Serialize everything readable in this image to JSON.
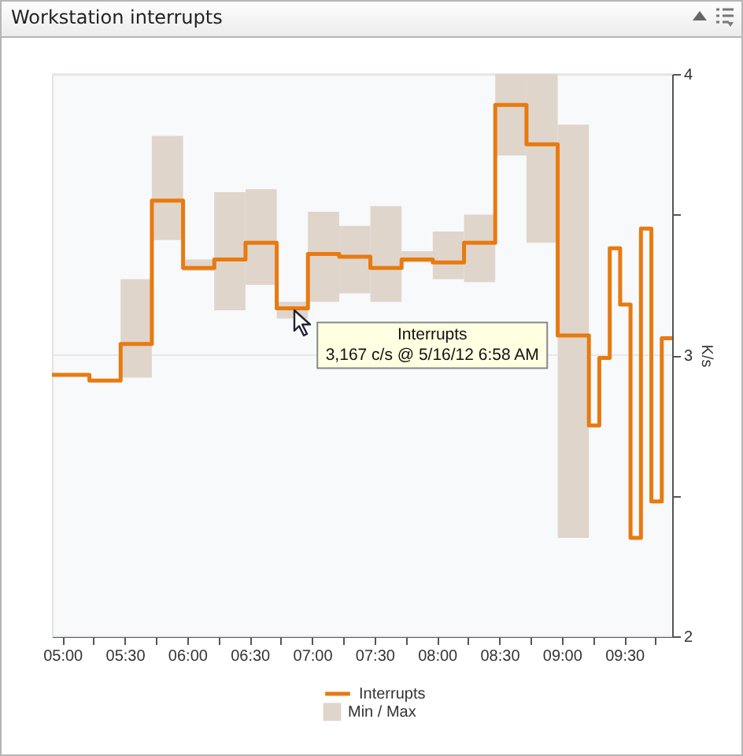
{
  "chart_data": {
    "type": "step",
    "title": "Workstation interrupts",
    "ylabel": "K/s",
    "xlim": [
      "--05-16T04:55",
      "--05-16T09:53"
    ],
    "ylim": [
      2,
      4
    ],
    "xticks": [
      {
        "value": "--05-16T05:00",
        "label": "05:00"
      },
      {
        "value": "--05-16T05:15",
        "label": null
      },
      {
        "value": "--05-16T05:30",
        "label": "05:30"
      },
      {
        "value": "--05-16T05:45",
        "label": null
      },
      {
        "value": "--05-16T06:00",
        "label": "06:00"
      },
      {
        "value": "--05-16T06:15",
        "label": null
      },
      {
        "value": "--05-16T06:30",
        "label": "06:30"
      },
      {
        "value": "--05-16T06:45",
        "label": null
      },
      {
        "value": "--05-16T07:00",
        "label": "07:00"
      },
      {
        "value": "--05-16T07:15",
        "label": null
      },
      {
        "value": "--05-16T07:30",
        "label": "07:30"
      },
      {
        "value": "--05-16T07:45",
        "label": null
      },
      {
        "value": "--05-16T08:00",
        "label": "08:00"
      },
      {
        "value": "--05-16T08:15",
        "label": null
      },
      {
        "value": "--05-16T08:30",
        "label": "08:30"
      },
      {
        "value": "--05-16T08:45",
        "label": null
      },
      {
        "value": "--05-16T09:00",
        "label": "09:00"
      },
      {
        "value": "--05-16T09:15",
        "label": null
      },
      {
        "value": "--05-16T09:30",
        "label": "09:30"
      },
      {
        "value": "--05-16T09:45",
        "label": null
      }
    ],
    "yticks": [
      2,
      {
        "value": 2.5,
        "label": null
      },
      3,
      {
        "value": 3.5,
        "label": null
      },
      4
    ],
    "grid": "y",
    "legend": "bottom",
    "annotations": [
      "Interrupts",
      {
        "text": "3,167 c/s @ 5/16/12 6:58 AM",
        "x": "--05-16T06:58",
        "y": 3.167
      }
    ],
    "series": [
      {
        "name": "Min / Max",
        "type": "bar",
        "color": "#dfd5cb",
        "x": [
          "--05-16T05:35:30",
          "--05-16T05:50:30",
          "--05-16T06:05:30",
          "--05-16T06:20:30",
          "--05-16T06:35:30",
          "--05-16T06:50:30",
          "--05-16T07:05:30",
          "--05-16T07:20:30",
          "--05-16T07:35:30",
          "--05-16T07:50:30",
          "--05-16T08:05:30",
          "--05-16T08:20:30",
          "--05-16T08:35:30",
          "--05-16T08:50:30",
          "--05-16T09:05:30"
        ],
        "base": [
          2.92,
          3.41,
          3.3,
          3.16,
          3.25,
          3.13,
          3.19,
          3.22,
          3.19,
          3.33,
          3.27,
          3.26,
          3.71,
          3.4,
          2.35
        ],
        "values": [
          0.35,
          0.37,
          0.04,
          0.42,
          0.34,
          0.06,
          0.32,
          0.24,
          0.34,
          0.04,
          0.17,
          0.24,
          0.29,
          0.6,
          1.47
        ]
      },
      {
        "name": "Interrupts",
        "color": "#e87a10",
        "x": [
          "--05-16T04:55",
          "--05-16T05:13",
          "--05-16T05:28",
          "--05-16T05:43",
          "--05-16T05:58",
          "--05-16T06:13",
          "--05-16T06:28",
          "--05-16T06:43",
          "--05-16T06:58",
          "--05-16T07:13",
          "--05-16T07:28",
          "--05-16T07:43",
          "--05-16T07:58",
          "--05-16T08:13",
          "--05-16T08:28",
          "--05-16T08:43",
          "--05-16T08:58",
          "--05-16T09:13",
          "--05-16T09:18",
          "--05-16T09:23",
          "--05-16T09:28",
          "--05-16T09:33",
          "--05-16T09:38",
          "--05-16T09:43",
          "--05-16T09:48",
          "--05-16T09:53"
        ],
        "values": [
          2.93,
          2.93,
          2.91,
          3.04,
          3.55,
          3.31,
          3.34,
          3.4,
          3.167,
          3.36,
          3.35,
          3.31,
          3.34,
          3.33,
          3.4,
          3.89,
          3.75,
          3.07,
          2.75,
          2.99,
          3.38,
          3.18,
          2.35,
          3.45,
          2.48,
          3.06
        ]
      }
    ]
  }
}
